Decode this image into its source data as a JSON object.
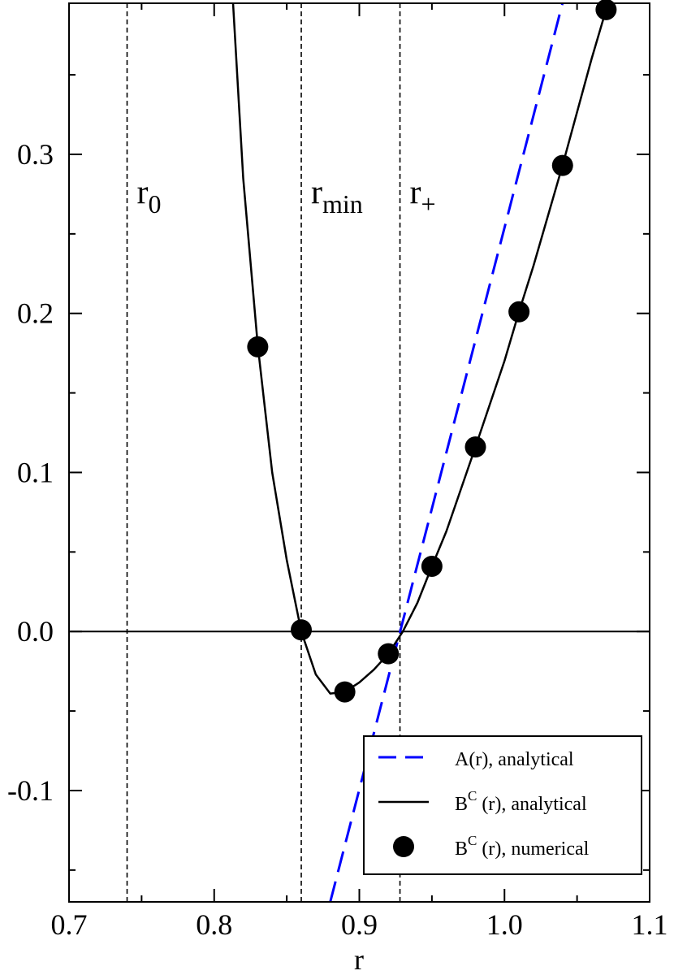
{
  "chart_data": {
    "type": "line",
    "title": "",
    "xlabel": "r",
    "ylabel": "",
    "xlim": [
      0.7,
      1.1
    ],
    "ylim": [
      -0.17,
      0.395
    ],
    "x_ticks": [
      0.7,
      0.8,
      0.9,
      1.0,
      1.1
    ],
    "x_tick_labels": [
      "0.7",
      "0.8",
      "0.9",
      "1.0",
      "1.1"
    ],
    "y_ticks": [
      -0.1,
      0.0,
      0.1,
      0.2,
      0.3
    ],
    "y_tick_labels": [
      "-0.1",
      "0.0",
      "0.1",
      "0.2",
      "0.3"
    ],
    "zero_line": 0.0,
    "vertical_lines": [
      {
        "name": "r0",
        "x": 0.74,
        "label": "r",
        "sub": "0"
      },
      {
        "name": "rmin",
        "x": 0.86,
        "label": "r",
        "sub": "min"
      },
      {
        "name": "rplus",
        "x": 0.928,
        "label": "r",
        "sub": "+"
      }
    ],
    "series": [
      {
        "name": "A(r), analytical",
        "style": "dashed",
        "color": "#0000ff",
        "x": [
          0.88,
          1.04
        ],
        "y": [
          -0.17,
          0.395
        ]
      },
      {
        "name": "B^C (r), analytical",
        "style": "solid",
        "color": "#000000",
        "x": [
          0.813,
          0.82,
          0.83,
          0.84,
          0.85,
          0.86,
          0.87,
          0.88,
          0.89,
          0.9,
          0.91,
          0.92,
          0.93,
          0.94,
          0.95,
          0.96,
          0.98,
          1.0,
          1.01,
          1.02,
          1.04,
          1.06,
          1.07
        ],
        "y": [
          0.395,
          0.285,
          0.18,
          0.1,
          0.045,
          0.0,
          -0.027,
          -0.039,
          -0.038,
          -0.032,
          -0.024,
          -0.014,
          0.0,
          0.018,
          0.041,
          0.063,
          0.116,
          0.17,
          0.201,
          0.23,
          0.293,
          0.36,
          0.391
        ]
      },
      {
        "name": "B^C (r), numerical",
        "style": "markers",
        "color": "#000000",
        "x": [
          0.83,
          0.86,
          0.89,
          0.92,
          0.95,
          0.98,
          1.01,
          1.04,
          1.07
        ],
        "y": [
          0.179,
          0.001,
          -0.038,
          -0.014,
          0.041,
          0.116,
          0.201,
          0.293,
          0.391
        ]
      }
    ],
    "legend": {
      "position": "bottom-right",
      "entries": [
        {
          "text": "A(r), analytical",
          "base": "A(r), analytical",
          "sup": "",
          "after": ""
        },
        {
          "text": "B^C (r), analytical",
          "base": "B",
          "sup": "C",
          "after": " (r), analytical"
        },
        {
          "text": "B^C (r), numerical",
          "base": "B",
          "sup": "C",
          "after": " (r), numerical"
        }
      ]
    }
  }
}
